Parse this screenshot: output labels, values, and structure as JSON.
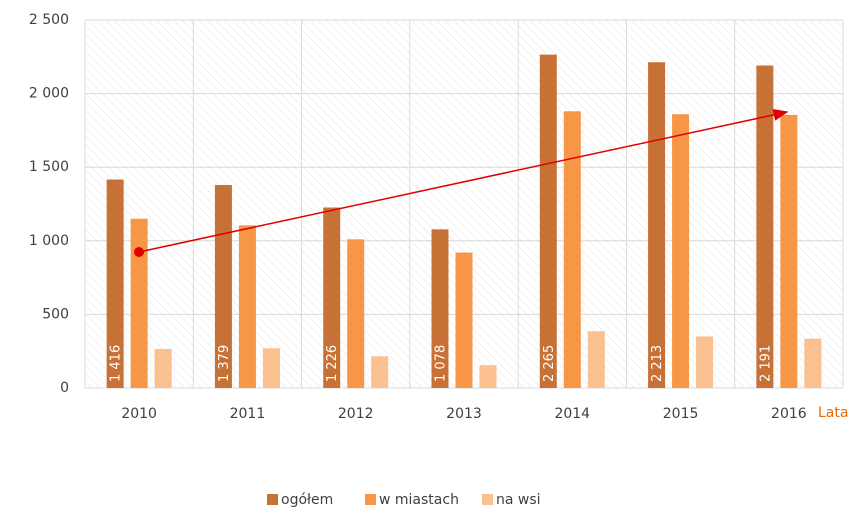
{
  "chart_data": {
    "type": "bar",
    "categories": [
      "2010",
      "2011",
      "2012",
      "2013",
      "2014",
      "2015",
      "2016"
    ],
    "x_label": "Lata",
    "series": [
      {
        "name": "ogółem",
        "color": "#c87137",
        "values": [
          1416,
          1379,
          1226,
          1078,
          2265,
          2213,
          2191
        ],
        "value_labels": [
          "1 416",
          "1 379",
          "1 226",
          "1 078",
          "2 265",
          "2 213",
          "2 191"
        ]
      },
      {
        "name": "w miastach",
        "color": "#f79646",
        "values": [
          1150,
          1105,
          1010,
          920,
          1880,
          1860,
          1855
        ]
      },
      {
        "name": "na wsi",
        "color": "#fac090",
        "values": [
          265,
          270,
          215,
          155,
          385,
          350,
          335
        ]
      }
    ],
    "ylim": [
      0,
      2500
    ],
    "yticks": [
      0,
      500,
      {
        "value": 1000,
        "label": "1 000"
      },
      {
        "value": 1500,
        "label": "1 500"
      },
      {
        "value": 2000,
        "label": "2 000"
      },
      {
        "value": 2500,
        "label": "2 500"
      }
    ],
    "grid": true,
    "legend": "bottom"
  }
}
